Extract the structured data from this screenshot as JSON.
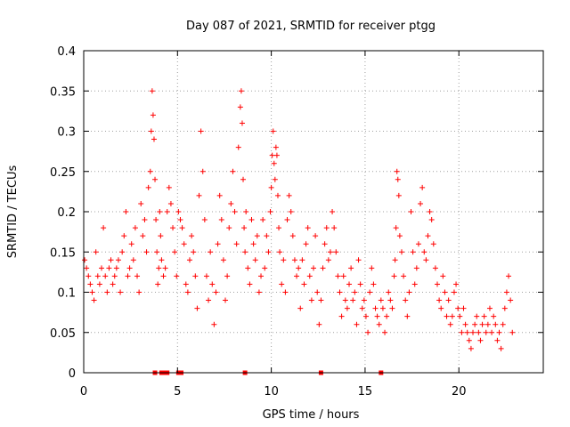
{
  "chart_data": {
    "type": "scatter",
    "title": "Day 087 of 2021, SRMTID for receiver ptgg",
    "xlabel": "GPS time / hours",
    "ylabel": "SRMTID / TECUs",
    "xlim": [
      0,
      24.5
    ],
    "ylim": [
      0,
      0.4
    ],
    "xticks": [
      0,
      5,
      10,
      15,
      20
    ],
    "xtick_labels": [
      "0",
      "5",
      "10",
      "15",
      "20"
    ],
    "yticks": [
      0,
      0.05,
      0.1,
      0.15,
      0.2,
      0.25,
      0.3,
      0.35,
      0.4
    ],
    "ytick_labels": [
      "0",
      "0.05",
      "0.1",
      "0.15",
      "0.2",
      "0.25",
      "0.3",
      "0.35",
      "0.4"
    ],
    "grid": true,
    "marker": "plus",
    "color": "#ff0000",
    "series": [
      {
        "name": "SRMTID",
        "x": [
          0.05,
          0.15,
          0.25,
          0.35,
          0.45,
          0.55,
          0.65,
          0.75,
          0.85,
          0.95,
          1.05,
          1.15,
          1.25,
          1.35,
          1.45,
          1.55,
          1.65,
          1.75,
          1.85,
          1.95,
          2.05,
          2.15,
          2.25,
          2.35,
          2.45,
          2.55,
          2.65,
          2.75,
          2.85,
          2.95,
          3.05,
          3.15,
          3.25,
          3.35,
          3.45,
          3.55,
          3.6,
          3.65,
          3.7,
          3.75,
          3.8,
          3.85,
          3.9,
          3.95,
          4.0,
          4.05,
          4.1,
          4.15,
          4.25,
          4.35,
          4.45,
          4.55,
          4.65,
          4.75,
          4.85,
          4.95,
          5.05,
          5.15,
          5.25,
          5.35,
          5.45,
          5.55,
          5.65,
          5.75,
          5.85,
          5.95,
          6.05,
          6.15,
          6.25,
          6.35,
          6.45,
          6.55,
          6.65,
          6.75,
          6.85,
          6.95,
          7.05,
          7.15,
          7.25,
          7.35,
          7.45,
          7.55,
          7.65,
          7.75,
          7.85,
          7.95,
          8.05,
          8.15,
          8.25,
          8.35,
          8.4,
          8.45,
          8.5,
          8.55,
          8.6,
          8.65,
          8.75,
          8.85,
          8.95,
          9.05,
          9.15,
          9.25,
          9.35,
          9.45,
          9.55,
          9.65,
          9.75,
          9.85,
          9.95,
          10.0,
          10.05,
          10.1,
          10.15,
          10.2,
          10.25,
          10.3,
          10.35,
          10.4,
          10.45,
          10.55,
          10.65,
          10.75,
          10.85,
          10.95,
          11.05,
          11.15,
          11.25,
          11.35,
          11.45,
          11.55,
          11.65,
          11.75,
          11.85,
          11.95,
          12.05,
          12.15,
          12.25,
          12.35,
          12.45,
          12.55,
          12.65,
          12.75,
          12.85,
          12.95,
          13.05,
          13.15,
          13.25,
          13.35,
          13.45,
          13.55,
          13.65,
          13.75,
          13.85,
          13.95,
          14.05,
          14.15,
          14.25,
          14.35,
          14.45,
          14.55,
          14.65,
          14.75,
          14.85,
          14.95,
          15.05,
          15.15,
          15.25,
          15.35,
          15.45,
          15.55,
          15.65,
          15.75,
          15.85,
          15.95,
          16.05,
          16.15,
          16.25,
          16.35,
          16.45,
          16.55,
          16.6,
          16.65,
          16.7,
          16.75,
          16.8,
          16.85,
          16.95,
          17.05,
          17.15,
          17.25,
          17.35,
          17.45,
          17.55,
          17.65,
          17.75,
          17.85,
          17.95,
          18.05,
          18.15,
          18.25,
          18.35,
          18.45,
          18.55,
          18.65,
          18.75,
          18.85,
          18.95,
          19.05,
          19.15,
          19.25,
          19.35,
          19.45,
          19.55,
          19.65,
          19.75,
          19.85,
          19.95,
          20.05,
          20.15,
          20.25,
          20.35,
          20.45,
          20.55,
          20.65,
          20.75,
          20.85,
          20.95,
          21.05,
          21.15,
          21.25,
          21.35,
          21.45,
          21.55,
          21.65,
          21.75,
          21.85,
          21.95,
          22.05,
          22.15,
          22.25,
          22.35,
          22.45,
          22.55,
          22.65,
          22.75,
          22.85
        ],
        "y": [
          0.14,
          0.13,
          0.12,
          0.11,
          0.1,
          0.09,
          0.15,
          0.12,
          0.11,
          0.13,
          0.18,
          0.12,
          0.1,
          0.13,
          0.14,
          0.11,
          0.12,
          0.13,
          0.14,
          0.1,
          0.15,
          0.17,
          0.2,
          0.12,
          0.13,
          0.16,
          0.14,
          0.18,
          0.12,
          0.1,
          0.21,
          0.17,
          0.19,
          0.15,
          0.23,
          0.25,
          0.3,
          0.35,
          0.32,
          0.29,
          0.24,
          0.19,
          0.15,
          0.11,
          0.13,
          0.2,
          0.17,
          0.14,
          0.12,
          0.13,
          0.2,
          0.23,
          0.21,
          0.18,
          0.15,
          0.12,
          0.2,
          0.19,
          0.18,
          0.16,
          0.11,
          0.1,
          0.14,
          0.17,
          0.15,
          0.12,
          0.08,
          0.22,
          0.3,
          0.25,
          0.19,
          0.12,
          0.09,
          0.15,
          0.11,
          0.06,
          0.1,
          0.16,
          0.22,
          0.19,
          0.14,
          0.09,
          0.12,
          0.18,
          0.21,
          0.25,
          0.2,
          0.16,
          0.28,
          0.33,
          0.35,
          0.31,
          0.24,
          0.18,
          0.15,
          0.2,
          0.13,
          0.11,
          0.19,
          0.16,
          0.14,
          0.17,
          0.1,
          0.12,
          0.19,
          0.13,
          0.17,
          0.15,
          0.2,
          0.23,
          0.27,
          0.3,
          0.26,
          0.24,
          0.28,
          0.27,
          0.22,
          0.18,
          0.15,
          0.11,
          0.14,
          0.1,
          0.19,
          0.22,
          0.2,
          0.17,
          0.14,
          0.12,
          0.13,
          0.08,
          0.14,
          0.11,
          0.16,
          0.18,
          0.12,
          0.09,
          0.13,
          0.17,
          0.1,
          0.06,
          0.09,
          0.13,
          0.16,
          0.18,
          0.14,
          0.15,
          0.2,
          0.18,
          0.15,
          0.12,
          0.1,
          0.07,
          0.12,
          0.09,
          0.08,
          0.11,
          0.13,
          0.09,
          0.1,
          0.06,
          0.14,
          0.11,
          0.08,
          0.09,
          0.07,
          0.05,
          0.1,
          0.13,
          0.11,
          0.08,
          0.07,
          0.06,
          0.09,
          0.08,
          0.05,
          0.07,
          0.1,
          0.09,
          0.08,
          0.12,
          0.14,
          0.18,
          0.25,
          0.24,
          0.22,
          0.17,
          0.15,
          0.12,
          0.09,
          0.07,
          0.1,
          0.2,
          0.15,
          0.11,
          0.13,
          0.16,
          0.21,
          0.23,
          0.15,
          0.14,
          0.17,
          0.2,
          0.19,
          0.16,
          0.13,
          0.11,
          0.09,
          0.08,
          0.12,
          0.1,
          0.07,
          0.09,
          0.06,
          0.07,
          0.1,
          0.11,
          0.08,
          0.07,
          0.05,
          0.08,
          0.06,
          0.05,
          0.04,
          0.03,
          0.05,
          0.06,
          0.07,
          0.05,
          0.04,
          0.06,
          0.07,
          0.05,
          0.06,
          0.08,
          0.05,
          0.07,
          0.06,
          0.04,
          0.05,
          0.03,
          0.06,
          0.08,
          0.1,
          0.12,
          0.09,
          0.05
        ]
      }
    ],
    "baseline_markers_x": [
      3.8,
      4.15,
      4.3,
      4.45,
      5.05,
      5.2,
      8.6,
      12.65,
      15.85
    ]
  }
}
